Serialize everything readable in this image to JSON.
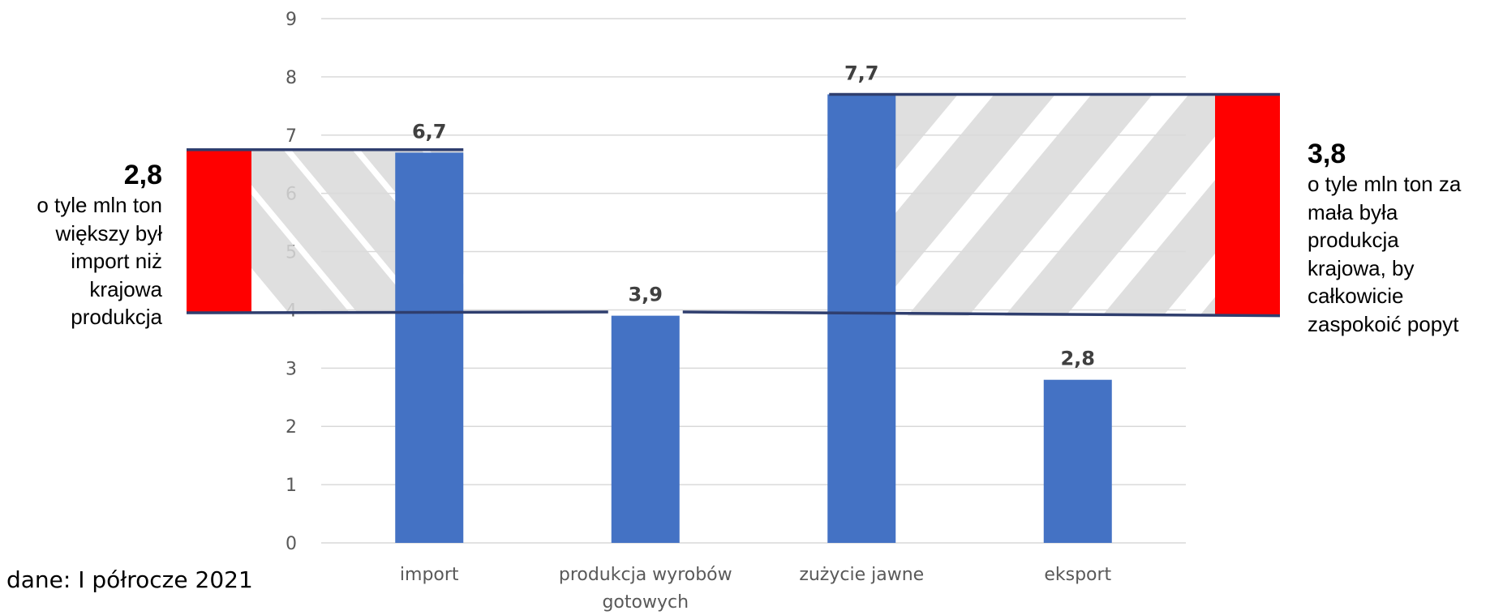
{
  "chart_data": {
    "type": "bar",
    "title": "",
    "xlabel": "",
    "ylabel": "",
    "categories": [
      "import",
      "produkcja wyrobów gotowych",
      "zużycie jawne",
      "eksport"
    ],
    "category_lines": [
      [
        "import"
      ],
      [
        "produkcja wyrobów",
        "gotowych"
      ],
      [
        "zużycie jawne"
      ],
      [
        "eksport"
      ]
    ],
    "values": [
      6.7,
      3.9,
      7.7,
      2.8
    ],
    "data_labels": [
      "6,7",
      "3,9",
      "7,7",
      "2,8"
    ],
    "ylim": [
      0,
      9
    ],
    "yticks": [
      0,
      1,
      2,
      3,
      4,
      5,
      6,
      7,
      8,
      9
    ],
    "grid": true,
    "legend": "none",
    "bar_color": "#4472C4",
    "highlight_color": "#FF0000",
    "line_color": "#2F3E6E",
    "hatch_color": "#D9D9D9"
  },
  "annotations": {
    "left": {
      "value": "2,8",
      "lines": [
        "o tyle mln ton",
        "większy był",
        "import niż",
        "krajowa",
        "produkcja"
      ],
      "range": [
        3.95,
        6.75
      ]
    },
    "right": {
      "value": "3,8",
      "lines": [
        "o tyle mln ton za",
        "mała była",
        "produkcja",
        "krajowa, by",
        "całkowicie",
        "zaspokoić popyt"
      ],
      "range": [
        3.9,
        7.7
      ]
    }
  },
  "source_note": "dane: I półrocze 2021"
}
